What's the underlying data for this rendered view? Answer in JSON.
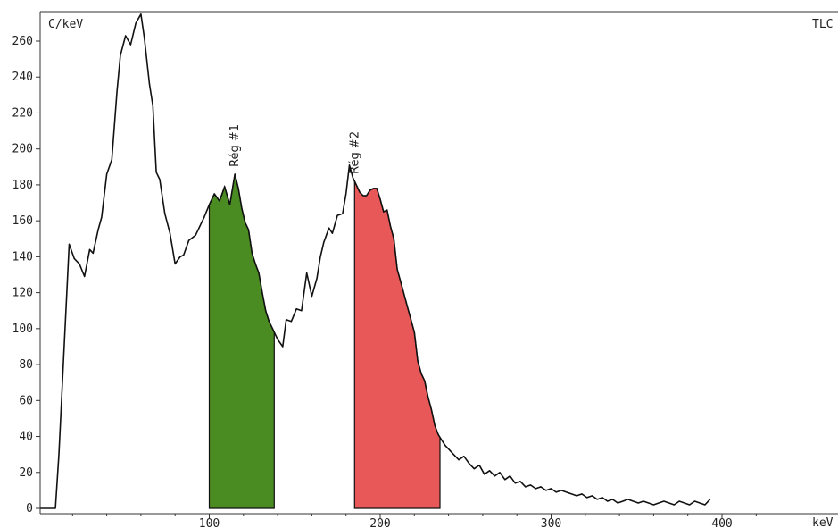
{
  "chart_data": {
    "type": "area",
    "ylabel": "C/keV",
    "xlabel": "keV",
    "corner_label": "TLC",
    "xlim": [
      0,
      420
    ],
    "ylim": [
      0,
      275
    ],
    "x_ticks": [
      100,
      200,
      300,
      400
    ],
    "y_ticks": [
      0,
      20,
      40,
      60,
      80,
      100,
      120,
      140,
      160,
      180,
      200,
      220,
      240,
      260
    ],
    "grid": false,
    "series": [
      {
        "x": [
          1,
          10,
          12,
          18,
          21,
          24,
          27,
          30,
          32,
          35,
          37,
          40,
          43,
          46,
          48,
          51,
          54,
          57,
          60,
          62,
          65,
          67,
          69,
          71,
          74,
          77,
          80,
          83,
          85,
          88,
          92,
          95,
          97,
          100,
          103,
          106,
          109,
          112,
          115,
          117,
          119,
          121,
          123,
          125,
          127,
          129,
          131,
          133,
          135,
          137,
          140,
          143,
          145,
          148,
          151,
          154,
          157,
          160,
          163,
          165,
          167,
          170,
          172,
          175,
          178,
          180,
          182,
          184,
          186,
          188,
          190,
          192,
          194,
          196,
          198,
          200,
          202,
          204,
          206,
          208,
          210,
          212,
          214,
          216,
          218,
          220,
          222,
          224,
          226,
          228,
          230,
          232,
          234,
          236,
          238,
          240,
          243,
          246,
          249,
          252,
          255,
          258,
          261,
          264,
          267,
          270,
          273,
          276,
          279,
          282,
          285,
          288,
          291,
          294,
          297,
          300,
          303,
          306,
          309,
          312,
          315,
          318,
          321,
          324,
          327,
          330,
          333,
          336,
          339,
          342,
          345,
          348,
          351,
          354,
          357,
          360,
          363,
          366,
          369,
          372,
          375,
          378,
          381,
          384,
          387,
          390,
          393
        ],
        "y": [
          0,
          0,
          30,
          147,
          139,
          136,
          129,
          144,
          142,
          155,
          162,
          186,
          194,
          232,
          252,
          263,
          258,
          270,
          275,
          262,
          236,
          224,
          187,
          183,
          164,
          153,
          136,
          140,
          141,
          149,
          152,
          158,
          162,
          169,
          175,
          171,
          179,
          169,
          186,
          178,
          167,
          159,
          155,
          142,
          136,
          131,
          120,
          110,
          104,
          100,
          94,
          90,
          105,
          104,
          111,
          110,
          131,
          118,
          128,
          140,
          148,
          156,
          153,
          163,
          164,
          175,
          191,
          184,
          180,
          176,
          174,
          174,
          177,
          178,
          178,
          172,
          165,
          166,
          157,
          150,
          133,
          126,
          119,
          112,
          105,
          98,
          82,
          75,
          71,
          62,
          55,
          46,
          41,
          38,
          35,
          33,
          30,
          27,
          29,
          25,
          22,
          24,
          19,
          21,
          18,
          20,
          16,
          18,
          14,
          15,
          12,
          13,
          11,
          12,
          10,
          11,
          9,
          10,
          9,
          8,
          7,
          8,
          6,
          7,
          5,
          6,
          4,
          5,
          3,
          4,
          5,
          4,
          3,
          4,
          3,
          2,
          3,
          4,
          3,
          2,
          4,
          3,
          2,
          4,
          3,
          2,
          5
        ]
      }
    ],
    "regions": [
      {
        "label": "Rég #1",
        "x_start": 100,
        "x_end": 138,
        "color": "#4a8c22"
      },
      {
        "label": "Rég #2",
        "x_start": 185,
        "x_end": 235,
        "color": "#e85858"
      }
    ]
  }
}
